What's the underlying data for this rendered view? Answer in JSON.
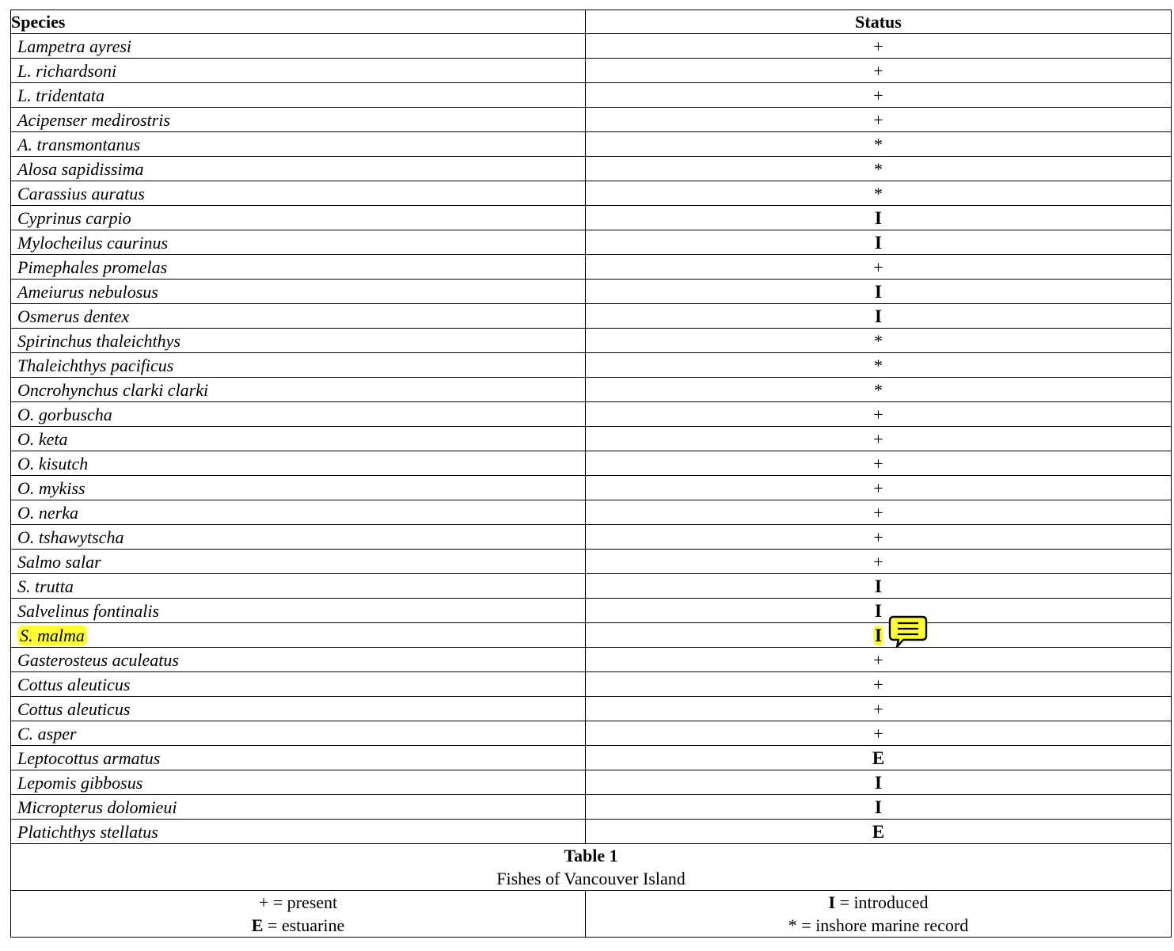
{
  "table": {
    "headers": {
      "species": "Species",
      "status": "Status"
    },
    "rows": [
      {
        "species": "Lampetra ayresi",
        "status": "+"
      },
      {
        "species": "L. richardsoni",
        "status": "+"
      },
      {
        "species": "L. tridentata",
        "status": "+"
      },
      {
        "species": "Acipenser medirostris",
        "status": "+"
      },
      {
        "species": "A. transmontanus",
        "status": "*"
      },
      {
        "species": "Alosa sapidissima",
        "status": "*"
      },
      {
        "species": "Carassius auratus",
        "status": "*"
      },
      {
        "species": "Cyprinus carpio",
        "status": "I"
      },
      {
        "species": "Mylocheilus caurinus",
        "status": "I"
      },
      {
        "species": "Pimephales promelas",
        "status": "+"
      },
      {
        "species": "Ameiurus nebulosus",
        "status": "I"
      },
      {
        "species": "Osmerus dentex",
        "status": "I"
      },
      {
        "species": "Spirinchus thaleichthys",
        "status": "*"
      },
      {
        "species": "Thaleichthys pacificus",
        "status": "*"
      },
      {
        "species": "Oncrohynchus clarki clarki",
        "status": "*"
      },
      {
        "species": "O. gorbuscha",
        "status": "+"
      },
      {
        "species": "O. keta",
        "status": "+"
      },
      {
        "species": "O. kisutch",
        "status": "+"
      },
      {
        "species": "O. mykiss",
        "status": "+"
      },
      {
        "species": "O. nerka",
        "status": "+"
      },
      {
        "species": "O. tshawytscha",
        "status": "+"
      },
      {
        "species": "Salmo salar",
        "status": "+"
      },
      {
        "species": "S. trutta",
        "status": "I"
      },
      {
        "species": "Salvelinus fontinalis",
        "status": "I"
      },
      {
        "species": "S. malma",
        "status": "I",
        "highlighted": true,
        "has_comment": true
      },
      {
        "species": "Gasterosteus aculeatus",
        "status": "+"
      },
      {
        "species": "Cottus aleuticus",
        "status": "+"
      },
      {
        "species": "Cottus aleuticus",
        "status": "+"
      },
      {
        "species": "C. asper",
        "status": "+"
      },
      {
        "species": "Leptocottus armatus",
        "status": "E"
      },
      {
        "species": "Lepomis gibbosus",
        "status": "I"
      },
      {
        "species": "Micropterus dolomieui",
        "status": "I"
      },
      {
        "species": "Platichthys stellatus",
        "status": "E"
      }
    ],
    "caption": {
      "title": "Table 1",
      "subtitle": "Fishes of Vancouver Island"
    },
    "legend": {
      "present": {
        "symbol": "+",
        "text": " = present"
      },
      "estuarine": {
        "symbol": "E",
        "text": " = estuarine"
      },
      "introduced": {
        "symbol": "I",
        "text": " = introduced"
      },
      "inshore": {
        "symbol": "*",
        "text": " = inshore marine record"
      }
    }
  },
  "colors": {
    "highlight": "#ffff33",
    "comment_icon_fill": "#ffff33"
  },
  "icons": {
    "comment": "speech-bubble-comment-icon"
  }
}
